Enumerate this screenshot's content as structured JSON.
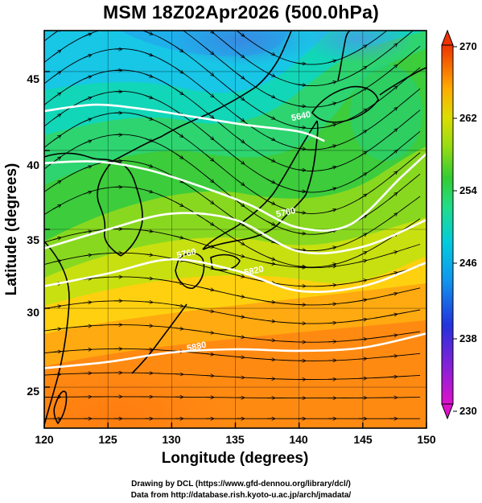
{
  "title": "MSM 18Z02Apr2026 (500.0hPa)",
  "xlabel": "Longitude (degrees)",
  "ylabel": "Latitude (degrees)",
  "x_ticks": [
    "120",
    "125",
    "130",
    "135",
    "140",
    "145",
    "150"
  ],
  "y_ticks": [
    "25",
    "30",
    "35",
    "40",
    "45"
  ],
  "colorbar_labels": [
    "270",
    "262",
    "254",
    "246",
    "238",
    "230"
  ],
  "contour_labels": [
    "5880",
    "5820",
    "5640",
    "5700",
    "5760"
  ],
  "credits": {
    "line1": "Drawing by DCL (https://www.gfd-dennou.org/library/dcl/)",
    "line2": "Data from http://database.rish.kyoto-u.ac.jp/arch/jmadata/"
  },
  "chart_data": {
    "type": "heatmap",
    "field": "temperature shading with streamlines and geopotential height contours",
    "title": "MSM 18Z02Apr2026 (500.0hPa)",
    "xlabel": "Longitude (degrees)",
    "ylabel": "Latitude (degrees)",
    "xlim": [
      120,
      150
    ],
    "ylim": [
      22.4,
      47.6
    ],
    "colorbar_range": [
      230,
      270
    ],
    "colorbar_ticks": [
      230,
      238,
      246,
      254,
      262,
      270
    ],
    "contour_levels": [
      5640,
      5700,
      5760,
      5820,
      5880
    ],
    "contours": [
      {
        "level": 5880,
        "points": [
          [
            120,
            26.2
          ],
          [
            125,
            26.6
          ],
          [
            130,
            27.2
          ],
          [
            135,
            27.4
          ],
          [
            140,
            27.3
          ],
          [
            145,
            27.5
          ],
          [
            150,
            28.4
          ]
        ]
      },
      {
        "level": 5820,
        "points": [
          [
            120,
            31.4
          ],
          [
            125,
            32.2
          ],
          [
            130,
            33.1
          ],
          [
            135,
            32.4
          ],
          [
            140,
            31.1
          ],
          [
            145,
            31.4
          ],
          [
            150,
            32.9
          ]
        ]
      },
      {
        "level": 5760,
        "points": [
          [
            120,
            33.8
          ],
          [
            125,
            35.0
          ],
          [
            130,
            36.0
          ],
          [
            135,
            35.6
          ],
          [
            140,
            33.6
          ],
          [
            145,
            33.9
          ],
          [
            150,
            35.6
          ]
        ]
      },
      {
        "level": 5700,
        "points": [
          [
            120,
            39.2
          ],
          [
            124,
            39.3
          ],
          [
            128,
            38.8
          ],
          [
            132,
            37.8
          ],
          [
            136,
            36.6
          ],
          [
            140,
            35.1
          ],
          [
            144,
            35.3
          ],
          [
            148,
            38.3
          ],
          [
            150,
            39.8
          ]
        ]
      },
      {
        "level": 5640,
        "points": [
          [
            120,
            42.5
          ],
          [
            124,
            42.9
          ],
          [
            128,
            42.6
          ],
          [
            132,
            42.1
          ],
          [
            136,
            41.6
          ],
          [
            140,
            41.2
          ],
          [
            142,
            40.6
          ]
        ]
      }
    ],
    "contour_label_positions": [
      {
        "text": "5880",
        "lon": 132.0,
        "lat": 27.4
      },
      {
        "text": "5820",
        "lon": 136.5,
        "lat": 32.2
      },
      {
        "text": "5760",
        "lon": 131.2,
        "lat": 33.3
      },
      {
        "text": "5700",
        "lon": 139.0,
        "lat": 35.9
      },
      {
        "text": "5640",
        "lon": 140.2,
        "lat": 42.0
      }
    ],
    "cold_center": {
      "lon": 139,
      "lat": 46.5,
      "value": 243
    },
    "warm_region": {
      "lon": 127,
      "lat": 24,
      "value": 264
    }
  },
  "colors": {
    "colorscale": [
      "#dd00dd",
      "#6a11cc",
      "#2233dd",
      "#1199ee",
      "#00ccdd",
      "#11dd99",
      "#33cc33",
      "#99dd00",
      "#dddd00",
      "#ffbb00",
      "#ff7700",
      "#ee3300"
    ],
    "contour": "#ffffff",
    "coast": "#000000"
  }
}
